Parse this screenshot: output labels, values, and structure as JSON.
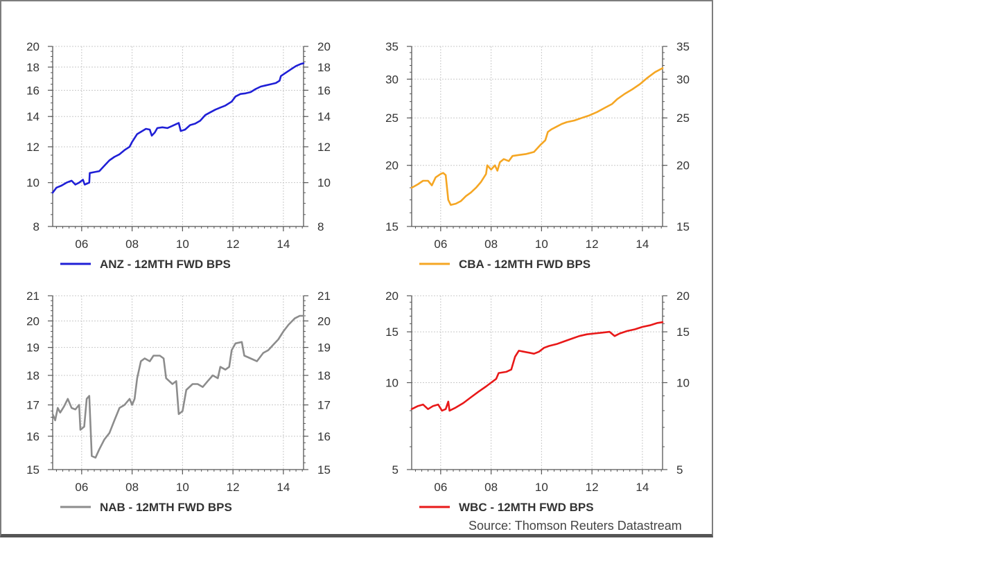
{
  "source_text": "Source: Thomson Reuters Datastream",
  "chart_data": [
    {
      "type": "line",
      "title": "",
      "legend_label": "ANZ - 12MTH FWD BPS",
      "color": "#1f1fd6",
      "y_scale": "log",
      "ylim": [
        8,
        20
      ],
      "yticks": [
        8,
        10,
        12,
        14,
        16,
        18,
        20
      ],
      "xlim": [
        2004.85,
        2014.8
      ],
      "xticks": [
        2006,
        2008,
        2010,
        2012,
        2014
      ],
      "xtick_labels": [
        "06",
        "08",
        "10",
        "12",
        "14"
      ],
      "series": [
        {
          "values": [
            [
              2004.85,
              9.5
            ],
            [
              2005.0,
              9.75
            ],
            [
              2005.2,
              9.85
            ],
            [
              2005.4,
              10.0
            ],
            [
              2005.6,
              10.1
            ],
            [
              2005.75,
              9.9
            ],
            [
              2005.9,
              10.0
            ],
            [
              2006.05,
              10.15
            ],
            [
              2006.12,
              9.9
            ],
            [
              2006.3,
              10.0
            ],
            [
              2006.32,
              10.5
            ],
            [
              2006.5,
              10.55
            ],
            [
              2006.7,
              10.6
            ],
            [
              2006.9,
              10.9
            ],
            [
              2007.1,
              11.2
            ],
            [
              2007.3,
              11.4
            ],
            [
              2007.5,
              11.55
            ],
            [
              2007.7,
              11.8
            ],
            [
              2007.9,
              12.0
            ],
            [
              2008.0,
              12.3
            ],
            [
              2008.2,
              12.8
            ],
            [
              2008.4,
              13.0
            ],
            [
              2008.55,
              13.15
            ],
            [
              2008.7,
              13.1
            ],
            [
              2008.78,
              12.7
            ],
            [
              2008.9,
              12.9
            ],
            [
              2009.0,
              13.2
            ],
            [
              2009.2,
              13.25
            ],
            [
              2009.4,
              13.2
            ],
            [
              2009.6,
              13.35
            ],
            [
              2009.85,
              13.55
            ],
            [
              2009.93,
              13.0
            ],
            [
              2010.1,
              13.1
            ],
            [
              2010.3,
              13.4
            ],
            [
              2010.5,
              13.5
            ],
            [
              2010.7,
              13.7
            ],
            [
              2010.9,
              14.1
            ],
            [
              2011.1,
              14.3
            ],
            [
              2011.3,
              14.5
            ],
            [
              2011.5,
              14.65
            ],
            [
              2011.7,
              14.8
            ],
            [
              2011.95,
              15.1
            ],
            [
              2012.1,
              15.5
            ],
            [
              2012.3,
              15.7
            ],
            [
              2012.5,
              15.75
            ],
            [
              2012.7,
              15.85
            ],
            [
              2012.9,
              16.1
            ],
            [
              2013.1,
              16.3
            ],
            [
              2013.3,
              16.4
            ],
            [
              2013.5,
              16.5
            ],
            [
              2013.7,
              16.6
            ],
            [
              2013.85,
              16.8
            ],
            [
              2013.9,
              17.2
            ],
            [
              2014.1,
              17.5
            ],
            [
              2014.3,
              17.8
            ],
            [
              2014.5,
              18.1
            ],
            [
              2014.7,
              18.3
            ],
            [
              2014.8,
              18.35
            ]
          ]
        }
      ]
    },
    {
      "type": "line",
      "title": "",
      "legend_label": "CBA - 12MTH FWD BPS",
      "color": "#f5a623",
      "y_scale": "log",
      "ylim": [
        15,
        35
      ],
      "yticks": [
        15,
        20,
        25,
        30,
        35
      ],
      "xlim": [
        2004.85,
        2014.8
      ],
      "xticks": [
        2006,
        2008,
        2010,
        2012,
        2014
      ],
      "xtick_labels": [
        "06",
        "08",
        "10",
        "12",
        "14"
      ],
      "series": [
        {
          "values": [
            [
              2004.85,
              18.0
            ],
            [
              2005.1,
              18.3
            ],
            [
              2005.3,
              18.6
            ],
            [
              2005.5,
              18.6
            ],
            [
              2005.65,
              18.2
            ],
            [
              2005.8,
              18.9
            ],
            [
              2006.0,
              19.2
            ],
            [
              2006.1,
              19.3
            ],
            [
              2006.2,
              19.1
            ],
            [
              2006.3,
              17.0
            ],
            [
              2006.4,
              16.6
            ],
            [
              2006.6,
              16.7
            ],
            [
              2006.8,
              16.9
            ],
            [
              2007.0,
              17.3
            ],
            [
              2007.2,
              17.6
            ],
            [
              2007.4,
              18.0
            ],
            [
              2007.6,
              18.5
            ],
            [
              2007.8,
              19.2
            ],
            [
              2007.85,
              20.0
            ],
            [
              2008.0,
              19.6
            ],
            [
              2008.15,
              20.0
            ],
            [
              2008.25,
              19.5
            ],
            [
              2008.35,
              20.3
            ],
            [
              2008.5,
              20.6
            ],
            [
              2008.7,
              20.4
            ],
            [
              2008.85,
              20.9
            ],
            [
              2009.1,
              21.0
            ],
            [
              2009.4,
              21.1
            ],
            [
              2009.7,
              21.3
            ],
            [
              2009.95,
              22.0
            ],
            [
              2010.15,
              22.5
            ],
            [
              2010.25,
              23.4
            ],
            [
              2010.4,
              23.7
            ],
            [
              2010.6,
              24.0
            ],
            [
              2010.8,
              24.3
            ],
            [
              2011.0,
              24.5
            ],
            [
              2011.3,
              24.7
            ],
            [
              2011.6,
              25.0
            ],
            [
              2011.9,
              25.3
            ],
            [
              2012.2,
              25.7
            ],
            [
              2012.5,
              26.2
            ],
            [
              2012.8,
              26.7
            ],
            [
              2013.0,
              27.3
            ],
            [
              2013.3,
              28.0
            ],
            [
              2013.6,
              28.6
            ],
            [
              2013.9,
              29.3
            ],
            [
              2014.2,
              30.2
            ],
            [
              2014.5,
              31.0
            ],
            [
              2014.8,
              31.6
            ]
          ]
        }
      ]
    },
    {
      "type": "line",
      "title": "",
      "legend_label": "NAB - 12MTH FWD BPS",
      "color": "#8c8c8c",
      "y_scale": "log",
      "ylim": [
        15,
        21
      ],
      "yticks": [
        15,
        16,
        17,
        18,
        19,
        20,
        21
      ],
      "xlim": [
        2004.85,
        2014.8
      ],
      "xticks": [
        2006,
        2008,
        2010,
        2012,
        2014
      ],
      "xtick_labels": [
        "06",
        "08",
        "10",
        "12",
        "14"
      ],
      "series": [
        {
          "values": [
            [
              2004.85,
              16.7
            ],
            [
              2004.95,
              16.5
            ],
            [
              2005.05,
              16.9
            ],
            [
              2005.15,
              16.75
            ],
            [
              2005.3,
              16.95
            ],
            [
              2005.45,
              17.2
            ],
            [
              2005.6,
              16.9
            ],
            [
              2005.75,
              16.85
            ],
            [
              2005.9,
              17.0
            ],
            [
              2005.95,
              16.2
            ],
            [
              2006.1,
              16.3
            ],
            [
              2006.2,
              17.2
            ],
            [
              2006.3,
              17.3
            ],
            [
              2006.4,
              15.4
            ],
            [
              2006.55,
              15.35
            ],
            [
              2006.7,
              15.6
            ],
            [
              2006.9,
              15.9
            ],
            [
              2007.1,
              16.1
            ],
            [
              2007.3,
              16.5
            ],
            [
              2007.5,
              16.9
            ],
            [
              2007.7,
              17.0
            ],
            [
              2007.9,
              17.2
            ],
            [
              2008.0,
              17.0
            ],
            [
              2008.1,
              17.2
            ],
            [
              2008.2,
              17.9
            ],
            [
              2008.35,
              18.5
            ],
            [
              2008.5,
              18.6
            ],
            [
              2008.7,
              18.5
            ],
            [
              2008.85,
              18.7
            ],
            [
              2009.1,
              18.7
            ],
            [
              2009.25,
              18.6
            ],
            [
              2009.35,
              17.9
            ],
            [
              2009.6,
              17.7
            ],
            [
              2009.75,
              17.8
            ],
            [
              2009.85,
              16.7
            ],
            [
              2010.0,
              16.8
            ],
            [
              2010.15,
              17.5
            ],
            [
              2010.4,
              17.7
            ],
            [
              2010.6,
              17.7
            ],
            [
              2010.8,
              17.6
            ],
            [
              2011.0,
              17.8
            ],
            [
              2011.2,
              18.0
            ],
            [
              2011.4,
              17.9
            ],
            [
              2011.5,
              18.3
            ],
            [
              2011.7,
              18.2
            ],
            [
              2011.85,
              18.3
            ],
            [
              2011.95,
              18.9
            ],
            [
              2012.1,
              19.15
            ],
            [
              2012.35,
              19.2
            ],
            [
              2012.45,
              18.7
            ],
            [
              2012.7,
              18.6
            ],
            [
              2012.95,
              18.5
            ],
            [
              2013.2,
              18.8
            ],
            [
              2013.4,
              18.9
            ],
            [
              2013.6,
              19.1
            ],
            [
              2013.8,
              19.3
            ],
            [
              2014.0,
              19.6
            ],
            [
              2014.2,
              19.85
            ],
            [
              2014.45,
              20.1
            ],
            [
              2014.65,
              20.2
            ],
            [
              2014.8,
              20.2
            ]
          ]
        }
      ]
    },
    {
      "type": "line",
      "title": "",
      "legend_label": "WBC - 12MTH FWD BPS",
      "color": "#e81818",
      "y_scale": "log",
      "ylim": [
        5,
        20
      ],
      "yticks": [
        5,
        10,
        15,
        20
      ],
      "xlim": [
        2004.85,
        2014.8
      ],
      "xticks": [
        2006,
        2008,
        2010,
        2012,
        2014
      ],
      "xtick_labels": [
        "06",
        "08",
        "10",
        "12",
        "14"
      ],
      "series": [
        {
          "values": [
            [
              2004.85,
              8.1
            ],
            [
              2005.1,
              8.3
            ],
            [
              2005.3,
              8.4
            ],
            [
              2005.5,
              8.1
            ],
            [
              2005.7,
              8.3
            ],
            [
              2005.9,
              8.4
            ],
            [
              2006.05,
              8.0
            ],
            [
              2006.2,
              8.1
            ],
            [
              2006.3,
              8.6
            ],
            [
              2006.35,
              8.0
            ],
            [
              2006.6,
              8.2
            ],
            [
              2006.9,
              8.5
            ],
            [
              2007.2,
              8.9
            ],
            [
              2007.5,
              9.3
            ],
            [
              2007.8,
              9.7
            ],
            [
              2008.0,
              10.0
            ],
            [
              2008.2,
              10.3
            ],
            [
              2008.3,
              10.8
            ],
            [
              2008.6,
              10.9
            ],
            [
              2008.8,
              11.1
            ],
            [
              2008.95,
              12.3
            ],
            [
              2009.1,
              12.9
            ],
            [
              2009.3,
              12.8
            ],
            [
              2009.5,
              12.7
            ],
            [
              2009.7,
              12.6
            ],
            [
              2009.9,
              12.8
            ],
            [
              2010.1,
              13.2
            ],
            [
              2010.3,
              13.4
            ],
            [
              2010.6,
              13.6
            ],
            [
              2010.9,
              13.9
            ],
            [
              2011.2,
              14.2
            ],
            [
              2011.5,
              14.5
            ],
            [
              2011.8,
              14.7
            ],
            [
              2012.1,
              14.8
            ],
            [
              2012.4,
              14.9
            ],
            [
              2012.7,
              15.0
            ],
            [
              2012.9,
              14.5
            ],
            [
              2013.1,
              14.8
            ],
            [
              2013.4,
              15.1
            ],
            [
              2013.7,
              15.3
            ],
            [
              2014.0,
              15.6
            ],
            [
              2014.3,
              15.8
            ],
            [
              2014.6,
              16.1
            ],
            [
              2014.8,
              16.2
            ]
          ]
        }
      ]
    }
  ]
}
